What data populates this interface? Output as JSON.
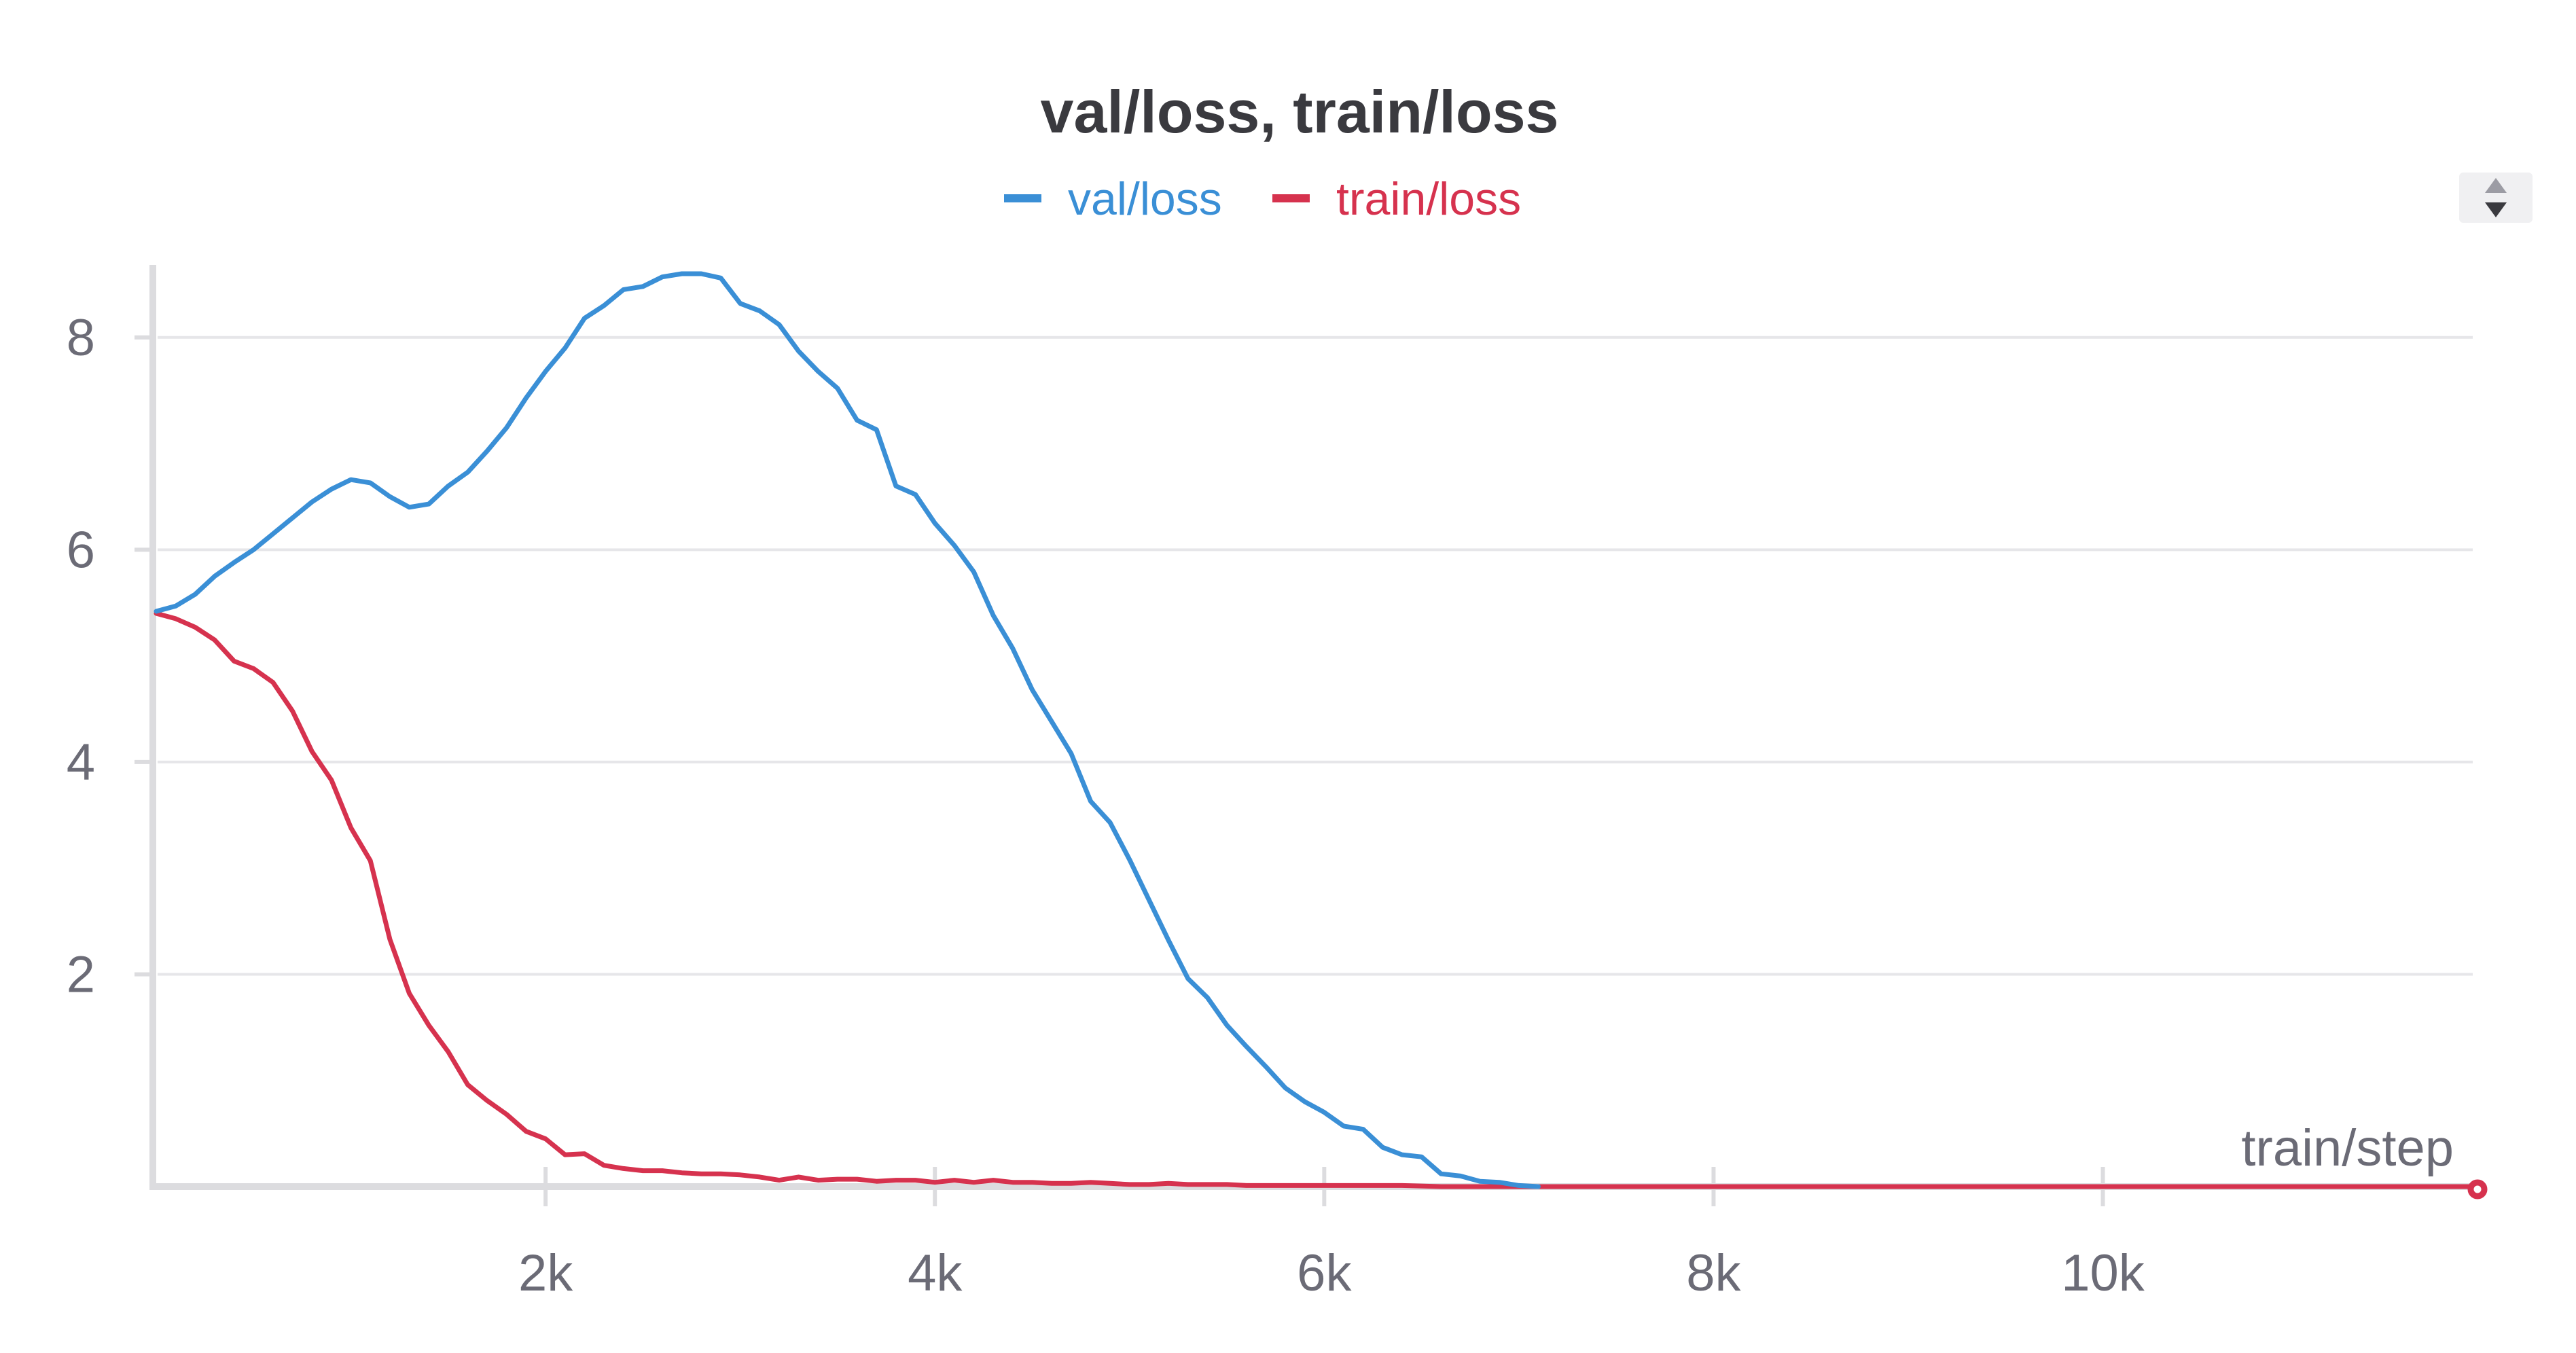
{
  "chart_data": {
    "type": "line",
    "title": "val/loss, train/loss",
    "xlabel": "train/step",
    "ylabel": "",
    "xlim": [
      0,
      11900
    ],
    "ylim": [
      0,
      8.6
    ],
    "x_ticks": [
      2000,
      4000,
      6000,
      8000,
      10000
    ],
    "x_tick_labels": [
      "2k",
      "4k",
      "6k",
      "8k",
      "10k"
    ],
    "y_ticks": [
      2,
      4,
      6,
      8
    ],
    "y_tick_labels": [
      "2",
      "4",
      "6",
      "8"
    ],
    "grid": true,
    "legend_position": "top-center",
    "colors": {
      "val": "#3a8fd6",
      "train": "#d6324e"
    },
    "series": [
      {
        "name": "val/loss",
        "x": [
          0,
          100,
          200,
          300,
          400,
          500,
          600,
          700,
          800,
          900,
          1000,
          1100,
          1200,
          1300,
          1400,
          1500,
          1600,
          1700,
          1800,
          1900,
          2000,
          2100,
          2200,
          2300,
          2400,
          2500,
          2600,
          2700,
          2800,
          2900,
          3000,
          3100,
          3200,
          3300,
          3400,
          3500,
          3600,
          3700,
          3800,
          3900,
          4000,
          4100,
          4200,
          4300,
          4400,
          4500,
          4600,
          4700,
          4800,
          4900,
          5000,
          5100,
          5200,
          5300,
          5400,
          5500,
          5600,
          5700,
          5800,
          5900,
          6000,
          6100,
          6200,
          6300,
          6400,
          6500,
          6600,
          6700,
          6800,
          6900,
          7000,
          7100
        ],
        "values": [
          5.42,
          5.47,
          5.58,
          5.75,
          5.88,
          6.0,
          6.15,
          6.3,
          6.45,
          6.57,
          6.66,
          6.63,
          6.5,
          6.4,
          6.43,
          6.6,
          6.73,
          6.93,
          7.15,
          7.43,
          7.68,
          7.9,
          8.18,
          8.3,
          8.45,
          8.48,
          8.57,
          8.6,
          8.6,
          8.56,
          8.32,
          8.25,
          8.12,
          7.87,
          7.68,
          7.52,
          7.22,
          7.13,
          6.6,
          6.52,
          6.25,
          6.04,
          5.79,
          5.38,
          5.07,
          4.68,
          4.38,
          4.08,
          3.63,
          3.43,
          3.08,
          2.7,
          2.32,
          1.96,
          1.78,
          1.52,
          1.32,
          1.13,
          0.93,
          0.8,
          0.7,
          0.57,
          0.54,
          0.37,
          0.3,
          0.28,
          0.12,
          0.1,
          0.05,
          0.04,
          0.01,
          0.0
        ]
      },
      {
        "name": "train/loss",
        "x": [
          0,
          100,
          200,
          300,
          400,
          500,
          600,
          700,
          800,
          900,
          1000,
          1100,
          1200,
          1300,
          1400,
          1500,
          1600,
          1700,
          1800,
          1900,
          2000,
          2100,
          2200,
          2300,
          2400,
          2500,
          2600,
          2700,
          2800,
          2900,
          3000,
          3100,
          3200,
          3300,
          3400,
          3500,
          3600,
          3700,
          3800,
          3900,
          4000,
          4100,
          4200,
          4300,
          4400,
          4500,
          4600,
          4700,
          4800,
          4900,
          5000,
          5100,
          5200,
          5300,
          5400,
          5500,
          5600,
          5800,
          6000,
          6200,
          6400,
          6600,
          6800,
          7000,
          7500,
          8000,
          9000,
          10000,
          11000,
          11900
        ],
        "values": [
          5.4,
          5.35,
          5.27,
          5.15,
          4.95,
          4.88,
          4.75,
          4.48,
          4.1,
          3.83,
          3.38,
          3.07,
          2.33,
          1.82,
          1.52,
          1.27,
          0.96,
          0.81,
          0.68,
          0.52,
          0.45,
          0.3,
          0.31,
          0.2,
          0.17,
          0.15,
          0.15,
          0.13,
          0.12,
          0.12,
          0.11,
          0.09,
          0.06,
          0.09,
          0.06,
          0.07,
          0.07,
          0.05,
          0.06,
          0.06,
          0.04,
          0.06,
          0.04,
          0.06,
          0.04,
          0.04,
          0.03,
          0.03,
          0.04,
          0.03,
          0.02,
          0.02,
          0.03,
          0.02,
          0.02,
          0.02,
          0.01,
          0.01,
          0.01,
          0.01,
          0.01,
          0.0,
          0.0,
          0.0,
          0.0,
          0.0,
          0.0,
          0.0,
          0.0,
          0.0
        ]
      }
    ]
  }
}
